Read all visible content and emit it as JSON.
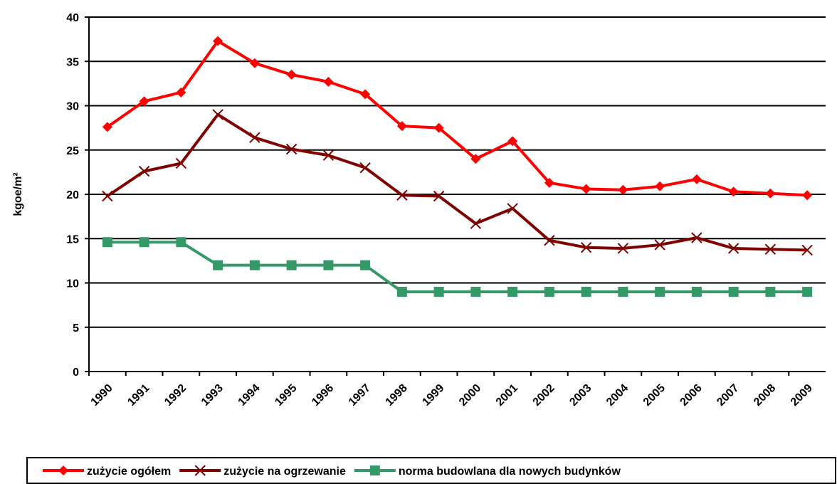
{
  "chart_data": {
    "type": "line",
    "y_label": "kgoe/m²",
    "categories": [
      "1990",
      "1991",
      "1992",
      "1993",
      "1994",
      "1995",
      "1996",
      "1997",
      "1998",
      "1999",
      "2000",
      "2001",
      "2002",
      "2003",
      "2004",
      "2005",
      "2006",
      "2007",
      "2008",
      "2009"
    ],
    "series": [
      {
        "name": "zużycie ogółem",
        "color": "#ff0000",
        "marker": "diamond",
        "values": [
          27.6,
          30.5,
          31.5,
          37.3,
          34.8,
          33.5,
          32.7,
          31.3,
          27.7,
          27.5,
          24.0,
          26.0,
          21.3,
          20.6,
          20.5,
          20.9,
          21.7,
          20.3,
          20.1,
          19.9
        ]
      },
      {
        "name": "zużycie na ogrzewanie",
        "color": "#800000",
        "marker": "x",
        "values": [
          19.8,
          22.6,
          23.5,
          29.0,
          26.4,
          25.1,
          24.4,
          23.0,
          19.9,
          19.8,
          16.7,
          18.4,
          14.8,
          14.0,
          13.9,
          14.3,
          15.1,
          13.9,
          13.8,
          13.7
        ]
      },
      {
        "name": "norma budowlana dla nowych budynków",
        "color": "#339966",
        "marker": "square",
        "values": [
          14.6,
          14.6,
          14.6,
          12,
          12,
          12,
          12,
          12,
          9,
          9,
          9,
          9,
          9,
          9,
          9,
          9,
          9,
          9,
          9,
          9
        ]
      }
    ],
    "ylim": [
      0,
      40
    ],
    "yticks": [
      0,
      5,
      10,
      15,
      20,
      25,
      30,
      35,
      40
    ],
    "grid": true,
    "legend": "bottom"
  }
}
